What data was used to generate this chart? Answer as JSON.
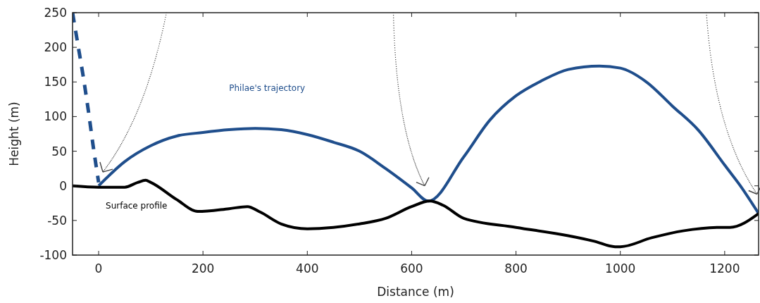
{
  "chart_data": {
    "type": "line",
    "xlabel": "Distance (m)",
    "ylabel": "Height (m)",
    "xlim": [
      -50,
      1265
    ],
    "xticks": [
      0,
      200,
      400,
      600,
      800,
      1000,
      1200
    ],
    "ylim": [
      -100,
      250
    ],
    "yticks": [
      -100,
      -50,
      0,
      50,
      100,
      150,
      200,
      250
    ],
    "grid": false,
    "marker": "none",
    "series": [
      {
        "name": "Philae's trajectory",
        "color": "#1f4e8c",
        "line_style": "solid",
        "x": [
          0,
          50,
          100,
          150,
          200,
          250,
          300,
          350,
          400,
          450,
          500,
          550,
          600,
          632,
          700,
          750,
          800,
          850,
          900,
          960,
          1000,
          1050,
          1100,
          1150,
          1200,
          1230,
          1265
        ],
        "values": [
          0,
          35,
          58,
          72,
          77,
          81,
          83,
          81,
          74,
          63,
          50,
          25,
          -3,
          -22,
          42,
          95,
          130,
          152,
          168,
          173,
          170,
          150,
          115,
          80,
          30,
          0,
          -40
        ]
      },
      {
        "color": "#1f4e8c",
        "line_style": "dashed",
        "x": [
          -50,
          -40,
          -30,
          -20,
          -10,
          0
        ],
        "values": [
          250,
          205,
          160,
          110,
          55,
          5
        ]
      },
      {
        "name": "Surface profile",
        "color": "#000000",
        "line_style": "solid",
        "x": [
          -50,
          0,
          50,
          75,
          90,
          100,
          150,
          190,
          250,
          285,
          310,
          350,
          400,
          450,
          500,
          550,
          600,
          635,
          660,
          700,
          800,
          900,
          950,
          990,
          1000,
          1060,
          1120,
          1190,
          1210,
          1265
        ],
        "values": [
          0,
          -2,
          -2,
          5,
          8,
          5,
          -20,
          -37,
          -33,
          -30,
          -38,
          -55,
          -62,
          -60,
          -55,
          -47,
          -30,
          -22,
          -28,
          -47,
          -60,
          -72,
          -80,
          -88,
          -88,
          -75,
          -65,
          -60,
          -60,
          -40
        ]
      }
    ]
  }
}
